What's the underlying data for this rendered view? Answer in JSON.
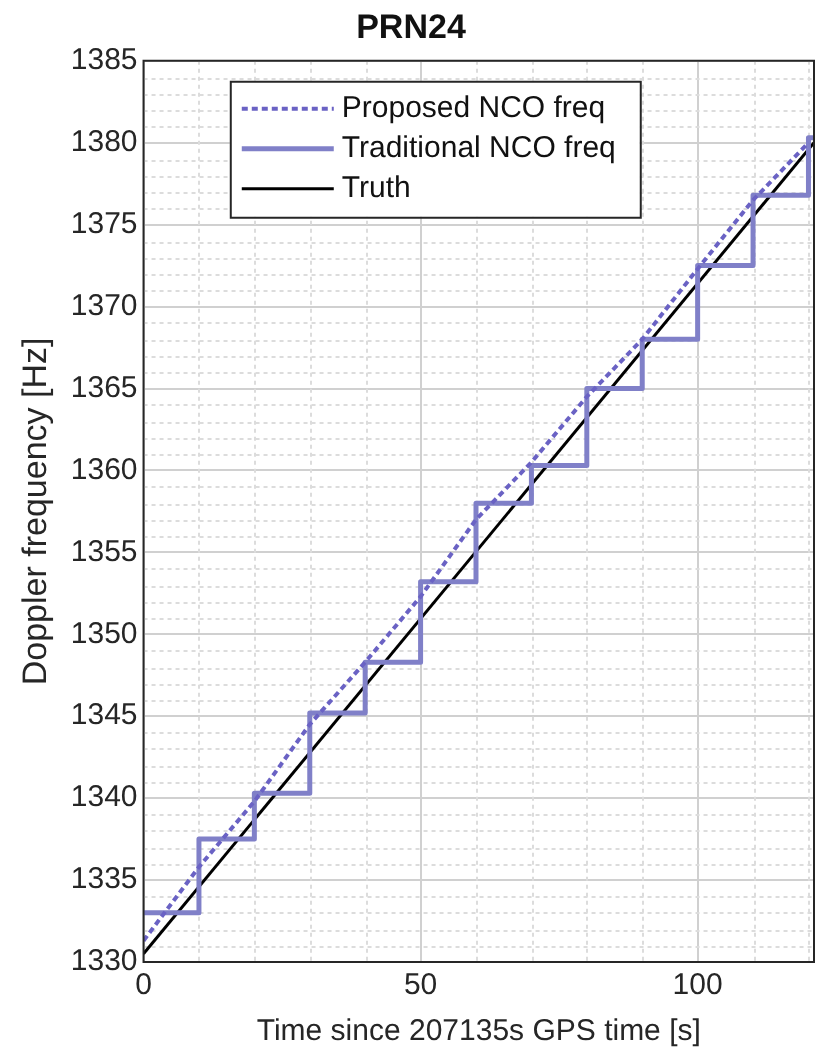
{
  "chart_data": {
    "type": "line",
    "title": "PRN24",
    "xlabel": "Time since 207135s GPS time [s]",
    "ylabel": "Doppler frequency [Hz]",
    "xlim": [
      0,
      121
    ],
    "xticks": [
      0,
      50,
      100
    ],
    "ylim": [
      1330,
      1385
    ],
    "yticks": [
      1330,
      1335,
      1340,
      1345,
      1350,
      1355,
      1360,
      1365,
      1370,
      1375,
      1380,
      1385
    ],
    "grid": true,
    "legend": "top",
    "marker": "none",
    "series": [
      {
        "name": "Proposed NCO freq",
        "color": "#6a62c4",
        "line_style": "dotted",
        "x": [
          0,
          10,
          20,
          30,
          40,
          50,
          60,
          70,
          80,
          90,
          100,
          110,
          120
        ],
        "values": [
          1331.3,
          1335.8,
          1339.8,
          1344.5,
          1348.3,
          1352.3,
          1357,
          1360.5,
          1364.5,
          1368,
          1372.3,
          1376.5,
          1380
        ]
      },
      {
        "name": "Traditional NCO freq",
        "type": "step",
        "color": "#8080c8",
        "line_style": "solid",
        "x": [
          0,
          10,
          20,
          30,
          40,
          50,
          60,
          70,
          80,
          90,
          100,
          110,
          120,
          121
        ],
        "values": [
          1333,
          1337.5,
          1340.3,
          1345.2,
          1348.3,
          1353.2,
          1358,
          1360.3,
          1365,
          1368,
          1372.5,
          1376.8,
          1380.3,
          1380.3
        ]
      },
      {
        "name": "Truth",
        "color": "#000000",
        "line_style": "solid",
        "x": [
          0,
          121
        ],
        "values": [
          1330.5,
          1380
        ]
      }
    ]
  }
}
